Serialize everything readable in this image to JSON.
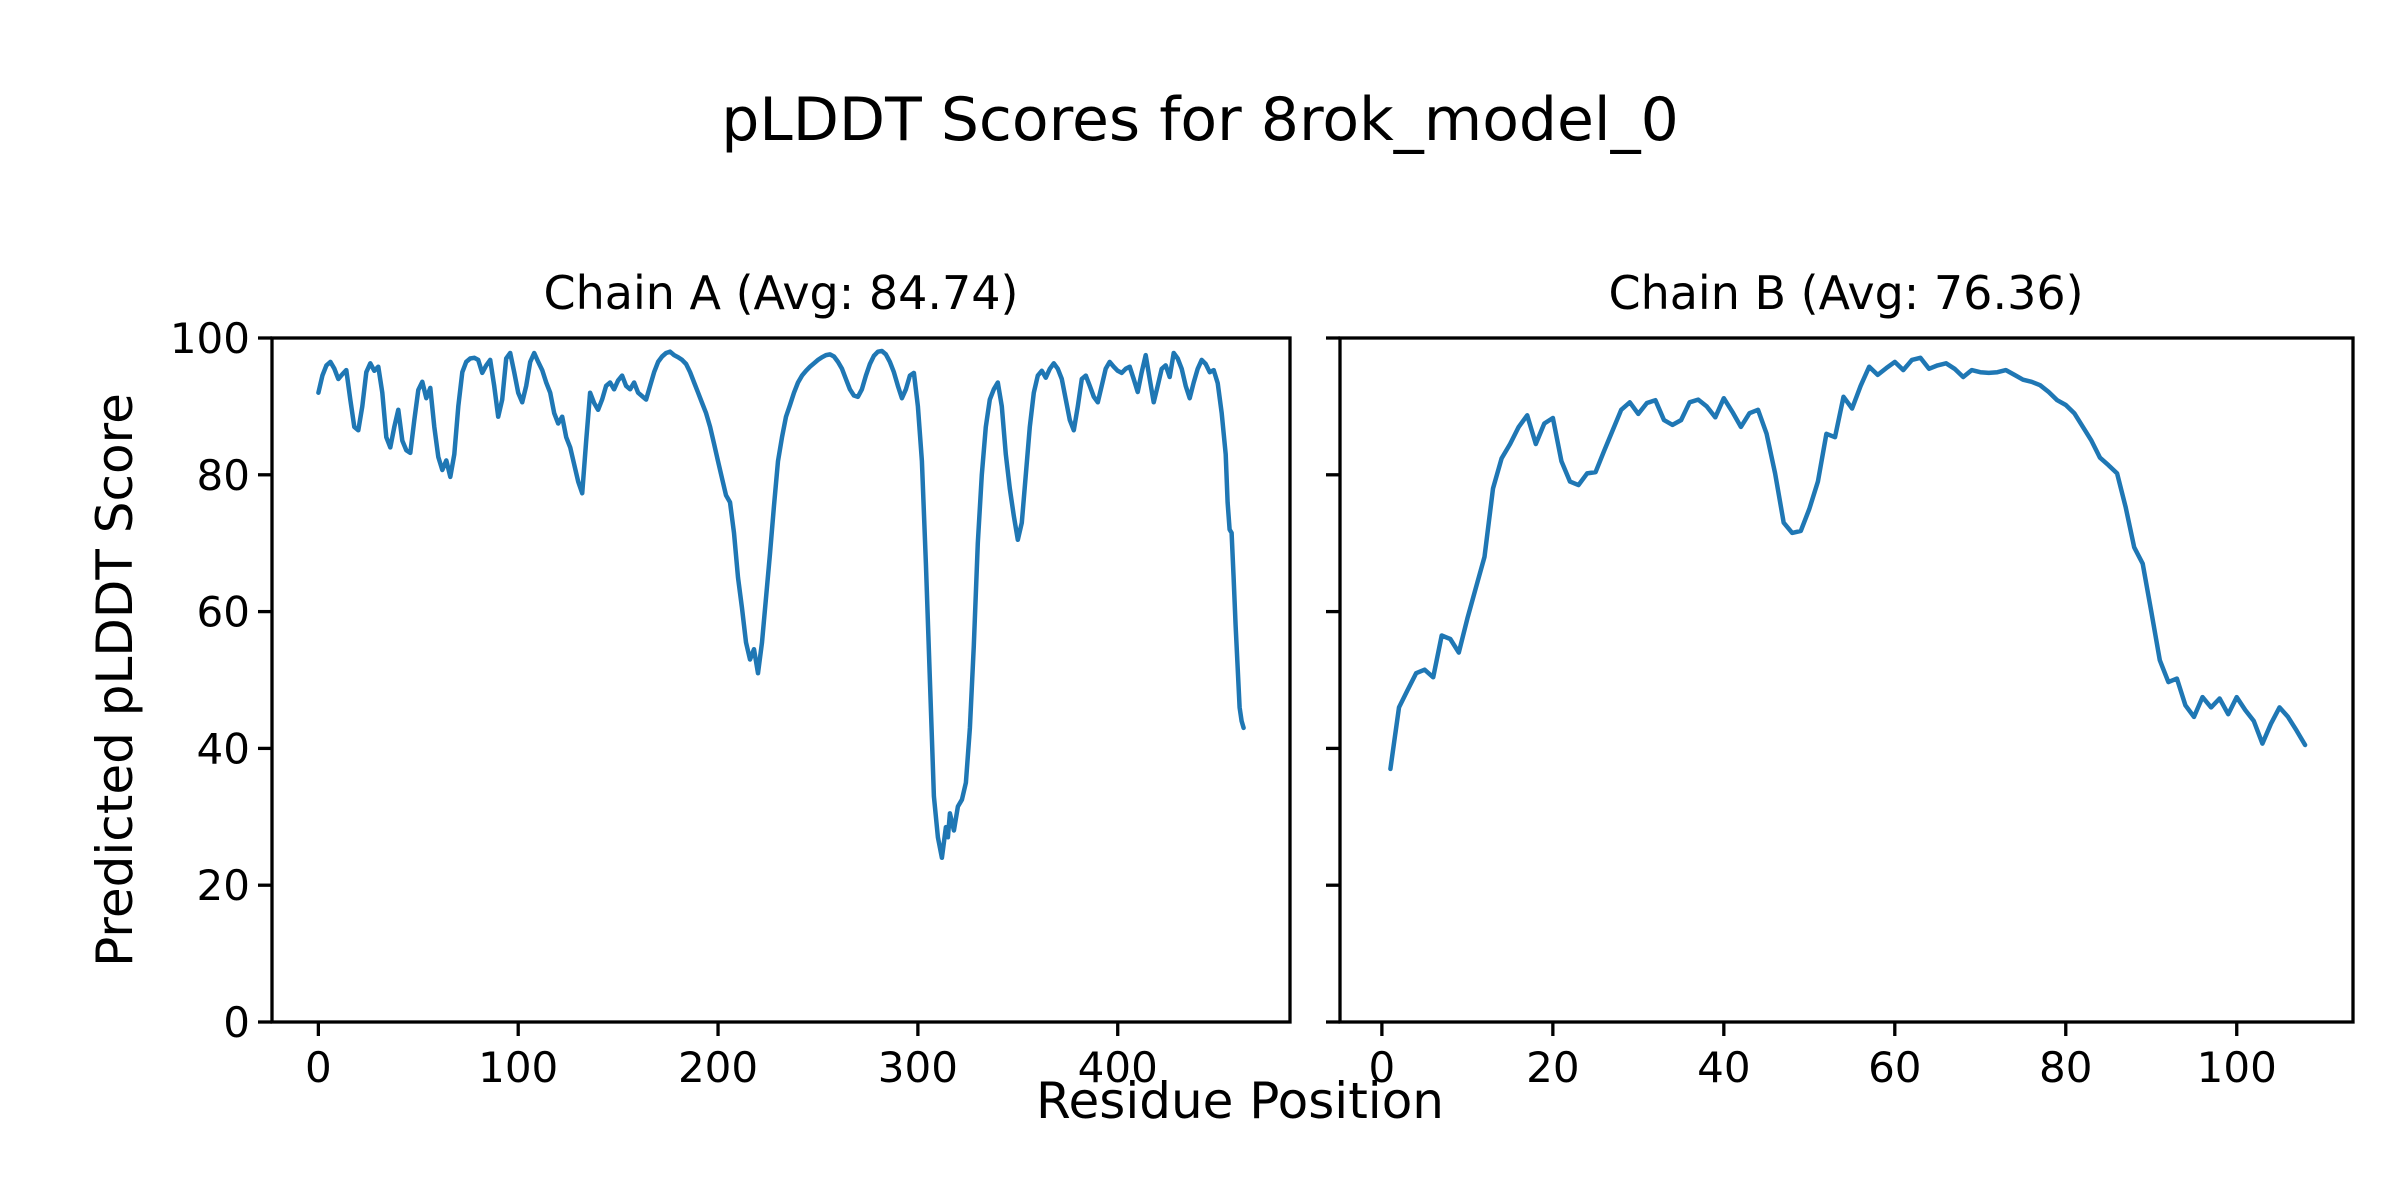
{
  "figure": {
    "title": "pLDDT Scores for 8rok_model_0",
    "background": "#ffffff",
    "text_color": "#000000"
  },
  "axes_labels": {
    "xlabel": "Residue Position",
    "ylabel": "Predicted pLDDT Score"
  },
  "chart_data": [
    {
      "type": "line",
      "chain": "A",
      "title": "Chain A (Avg: 84.74)",
      "average_plddt": 84.74,
      "line_color": "#1f77b4",
      "xlim": [
        -23.2,
        486.2
      ],
      "ylim": [
        0,
        100
      ],
      "xticks": [
        0,
        100,
        200,
        300,
        400
      ],
      "yticks": [
        0,
        20,
        40,
        60,
        80,
        100
      ],
      "show_ytick_labels": true,
      "points": [
        [
          0,
          92
        ],
        [
          2,
          94.5
        ],
        [
          4,
          96
        ],
        [
          6,
          96.5
        ],
        [
          8,
          95.5
        ],
        [
          10,
          94
        ],
        [
          12,
          94.7
        ],
        [
          14,
          95.3
        ],
        [
          16,
          91
        ],
        [
          18,
          87
        ],
        [
          20,
          86.5
        ],
        [
          22,
          90
        ],
        [
          24,
          95
        ],
        [
          26,
          96.3
        ],
        [
          28,
          95.2
        ],
        [
          30,
          95.8
        ],
        [
          32,
          92
        ],
        [
          34,
          85.5
        ],
        [
          36,
          84
        ],
        [
          38,
          87
        ],
        [
          40,
          89.5
        ],
        [
          42,
          85
        ],
        [
          44,
          83.6
        ],
        [
          46,
          83.2
        ],
        [
          48,
          88
        ],
        [
          50,
          92.4
        ],
        [
          52,
          93.6
        ],
        [
          54,
          91.2
        ],
        [
          56,
          92.7
        ],
        [
          58,
          87
        ],
        [
          60,
          82.6
        ],
        [
          62,
          80.7
        ],
        [
          64,
          82.1
        ],
        [
          66,
          79.7
        ],
        [
          68,
          83
        ],
        [
          70,
          90
        ],
        [
          72,
          95
        ],
        [
          74,
          96.5
        ],
        [
          76,
          97
        ],
        [
          78,
          97.1
        ],
        [
          80,
          96.8
        ],
        [
          82,
          94.9
        ],
        [
          84,
          96
        ],
        [
          86,
          96.8
        ],
        [
          88,
          93
        ],
        [
          90,
          88.5
        ],
        [
          92,
          91
        ],
        [
          94,
          97
        ],
        [
          96,
          97.8
        ],
        [
          98,
          95
        ],
        [
          100,
          92
        ],
        [
          102,
          90.6
        ],
        [
          104,
          93
        ],
        [
          106,
          96.5
        ],
        [
          108,
          97.8
        ],
        [
          110,
          96.5
        ],
        [
          112,
          95.3
        ],
        [
          114,
          93.5
        ],
        [
          116,
          92
        ],
        [
          118,
          89
        ],
        [
          120,
          87.5
        ],
        [
          122,
          88.5
        ],
        [
          124,
          85.5
        ],
        [
          126,
          84
        ],
        [
          128,
          81.5
        ],
        [
          130,
          79
        ],
        [
          132,
          77.3
        ],
        [
          134,
          85
        ],
        [
          136,
          92
        ],
        [
          138,
          90.5
        ],
        [
          140,
          89.5
        ],
        [
          142,
          91
        ],
        [
          144,
          93
        ],
        [
          146,
          93.5
        ],
        [
          148,
          92.5
        ],
        [
          150,
          93.8
        ],
        [
          152,
          94.5
        ],
        [
          154,
          93
        ],
        [
          156,
          92.5
        ],
        [
          158,
          93.5
        ],
        [
          160,
          92
        ],
        [
          162,
          91.5
        ],
        [
          164,
          91
        ],
        [
          166,
          93
        ],
        [
          168,
          95
        ],
        [
          170,
          96.5
        ],
        [
          172,
          97.3
        ],
        [
          174,
          97.8
        ],
        [
          176,
          98
        ],
        [
          178,
          97.5
        ],
        [
          180,
          97.2
        ],
        [
          182,
          96.8
        ],
        [
          184,
          96.2
        ],
        [
          186,
          95
        ],
        [
          188,
          93.5
        ],
        [
          190,
          92
        ],
        [
          192,
          90.5
        ],
        [
          194,
          89
        ],
        [
          196,
          87
        ],
        [
          198,
          84.5
        ],
        [
          200,
          82
        ],
        [
          202,
          79.5
        ],
        [
          204,
          77
        ],
        [
          206,
          76
        ],
        [
          208,
          71.5
        ],
        [
          210,
          65
        ],
        [
          212,
          60.5
        ],
        [
          214,
          55.5
        ],
        [
          216,
          53
        ],
        [
          218,
          54.5
        ],
        [
          220,
          51
        ],
        [
          222,
          55.5
        ],
        [
          224,
          62
        ],
        [
          226,
          68.5
        ],
        [
          228,
          75.5
        ],
        [
          230,
          82
        ],
        [
          232,
          85.5
        ],
        [
          234,
          88.5
        ],
        [
          236,
          90.2
        ],
        [
          238,
          92
        ],
        [
          240,
          93.5
        ],
        [
          242,
          94.5
        ],
        [
          244,
          95.2
        ],
        [
          246,
          95.8
        ],
        [
          248,
          96.3
        ],
        [
          250,
          96.8
        ],
        [
          252,
          97.2
        ],
        [
          254,
          97.5
        ],
        [
          256,
          97.6
        ],
        [
          258,
          97.3
        ],
        [
          260,
          96.5
        ],
        [
          262,
          95.5
        ],
        [
          264,
          94
        ],
        [
          266,
          92.5
        ],
        [
          268,
          91.6
        ],
        [
          270,
          91.4
        ],
        [
          272,
          92.5
        ],
        [
          274,
          94.5
        ],
        [
          276,
          96.2
        ],
        [
          278,
          97.4
        ],
        [
          280,
          98
        ],
        [
          282,
          98.1
        ],
        [
          284,
          97.6
        ],
        [
          286,
          96.5
        ],
        [
          288,
          95
        ],
        [
          290,
          93
        ],
        [
          292,
          91.2
        ],
        [
          294,
          92.5
        ],
        [
          296,
          94.5
        ],
        [
          298,
          94.9
        ],
        [
          300,
          90
        ],
        [
          302,
          82
        ],
        [
          304,
          67
        ],
        [
          306,
          50
        ],
        [
          308,
          33
        ],
        [
          310,
          27
        ],
        [
          312,
          24
        ],
        [
          314,
          28.5
        ],
        [
          315,
          27
        ],
        [
          316,
          30.5
        ],
        [
          318,
          28
        ],
        [
          320,
          31.5
        ],
        [
          322,
          32.5
        ],
        [
          324,
          35
        ],
        [
          326,
          43
        ],
        [
          328,
          55
        ],
        [
          330,
          70
        ],
        [
          332,
          80
        ],
        [
          334,
          87
        ],
        [
          336,
          91
        ],
        [
          338,
          92.5
        ],
        [
          340,
          93.5
        ],
        [
          342,
          90
        ],
        [
          344,
          83
        ],
        [
          346,
          78
        ],
        [
          348,
          74
        ],
        [
          350,
          70.5
        ],
        [
          352,
          73
        ],
        [
          354,
          80
        ],
        [
          356,
          87
        ],
        [
          358,
          92
        ],
        [
          360,
          94.5
        ],
        [
          362,
          95.2
        ],
        [
          364,
          94.2
        ],
        [
          366,
          95.5
        ],
        [
          368,
          96.3
        ],
        [
          370,
          95.5
        ],
        [
          372,
          94
        ],
        [
          374,
          91
        ],
        [
          376,
          88
        ],
        [
          378,
          86.5
        ],
        [
          380,
          90
        ],
        [
          382,
          94
        ],
        [
          384,
          94.5
        ],
        [
          386,
          93
        ],
        [
          388,
          91.4
        ],
        [
          390,
          90.6
        ],
        [
          392,
          93
        ],
        [
          394,
          95.5
        ],
        [
          396,
          96.5
        ],
        [
          398,
          95.8
        ],
        [
          400,
          95.2
        ],
        [
          402,
          94.9
        ],
        [
          404,
          95.5
        ],
        [
          406,
          95.8
        ],
        [
          408,
          94
        ],
        [
          410,
          92.1
        ],
        [
          412,
          95
        ],
        [
          414,
          97.5
        ],
        [
          416,
          94
        ],
        [
          418,
          90.6
        ],
        [
          420,
          93
        ],
        [
          422,
          95.5
        ],
        [
          424,
          96
        ],
        [
          426,
          94.3
        ],
        [
          428,
          97.8
        ],
        [
          430,
          97
        ],
        [
          432,
          95.5
        ],
        [
          434,
          93
        ],
        [
          436,
          91.2
        ],
        [
          438,
          93.5
        ],
        [
          440,
          95.5
        ],
        [
          442,
          96.8
        ],
        [
          444,
          96.2
        ],
        [
          446,
          95
        ],
        [
          448,
          95.3
        ],
        [
          450,
          93.4
        ],
        [
          452,
          89
        ],
        [
          454,
          83
        ],
        [
          455,
          76
        ],
        [
          456,
          72
        ],
        [
          457,
          71.5
        ],
        [
          458,
          65
        ],
        [
          459,
          58
        ],
        [
          460,
          52
        ],
        [
          461,
          46
        ],
        [
          462,
          44
        ],
        [
          463,
          43
        ]
      ]
    },
    {
      "type": "line",
      "chain": "B",
      "title": "Chain B (Avg: 76.36)",
      "average_plddt": 76.36,
      "line_color": "#1f77b4",
      "xlim": [
        -4.9,
        113.6
      ],
      "ylim": [
        0,
        100
      ],
      "xticks": [
        0,
        20,
        40,
        60,
        80,
        100
      ],
      "yticks": [
        0,
        20,
        40,
        60,
        80,
        100
      ],
      "show_ytick_labels": false,
      "points": [
        [
          1,
          37
        ],
        [
          2,
          46
        ],
        [
          3,
          48.5
        ],
        [
          4,
          51
        ],
        [
          5,
          51.5
        ],
        [
          6,
          50.4
        ],
        [
          7,
          56.5
        ],
        [
          8,
          56
        ],
        [
          9,
          54
        ],
        [
          10,
          59
        ],
        [
          11,
          63.5
        ],
        [
          12,
          68
        ],
        [
          13,
          78
        ],
        [
          14,
          82.4
        ],
        [
          15,
          84.5
        ],
        [
          16,
          87
        ],
        [
          17,
          88.7
        ],
        [
          18,
          84.5
        ],
        [
          19,
          87.5
        ],
        [
          20,
          88.3
        ],
        [
          21,
          82
        ],
        [
          22,
          79
        ],
        [
          23,
          78.5
        ],
        [
          24,
          80.2
        ],
        [
          25,
          80.4
        ],
        [
          26,
          83.5
        ],
        [
          27,
          86.5
        ],
        [
          28,
          89.5
        ],
        [
          29,
          90.6
        ],
        [
          30,
          88.9
        ],
        [
          31,
          90.5
        ],
        [
          32,
          90.9
        ],
        [
          33,
          88
        ],
        [
          34,
          87.3
        ],
        [
          35,
          88
        ],
        [
          36,
          90.6
        ],
        [
          37,
          91
        ],
        [
          38,
          90
        ],
        [
          39,
          88.4
        ],
        [
          40,
          91.2
        ],
        [
          41,
          89.2
        ],
        [
          42,
          87
        ],
        [
          43,
          89
        ],
        [
          44,
          89.5
        ],
        [
          45,
          86
        ],
        [
          46,
          80.2
        ],
        [
          47,
          73
        ],
        [
          48,
          71.5
        ],
        [
          49,
          71.8
        ],
        [
          50,
          75
        ],
        [
          51,
          79
        ],
        [
          52,
          86
        ],
        [
          53,
          85.5
        ],
        [
          54,
          91.4
        ],
        [
          55,
          89.7
        ],
        [
          56,
          93
        ],
        [
          57,
          95.8
        ],
        [
          58,
          94.6
        ],
        [
          59,
          95.6
        ],
        [
          60,
          96.5
        ],
        [
          61,
          95.3
        ],
        [
          62,
          96.8
        ],
        [
          63,
          97.1
        ],
        [
          64,
          95.5
        ],
        [
          65,
          96
        ],
        [
          66,
          96.3
        ],
        [
          67,
          95.5
        ],
        [
          68,
          94.3
        ],
        [
          69,
          95.3
        ],
        [
          70,
          95
        ],
        [
          71,
          94.9
        ],
        [
          72,
          95
        ],
        [
          73,
          95.3
        ],
        [
          74,
          94.6
        ],
        [
          75,
          93.9
        ],
        [
          76,
          93.6
        ],
        [
          77,
          93.1
        ],
        [
          78,
          92.1
        ],
        [
          79,
          90.9
        ],
        [
          80,
          90.2
        ],
        [
          81,
          89
        ],
        [
          82,
          87
        ],
        [
          83,
          85
        ],
        [
          84,
          82.5
        ],
        [
          85,
          81.4
        ],
        [
          86,
          80.2
        ],
        [
          87,
          75.3
        ],
        [
          88,
          69.4
        ],
        [
          89,
          67
        ],
        [
          90,
          60
        ],
        [
          91,
          52.9
        ],
        [
          92,
          49.7
        ],
        [
          93,
          50.2
        ],
        [
          94,
          46.3
        ],
        [
          95,
          44.6
        ],
        [
          96,
          47.5
        ],
        [
          97,
          46
        ],
        [
          98,
          47.3
        ],
        [
          99,
          45
        ],
        [
          100,
          47.5
        ],
        [
          101,
          45.6
        ],
        [
          102,
          44
        ],
        [
          103,
          40.7
        ],
        [
          104,
          43.6
        ],
        [
          105,
          46
        ],
        [
          106,
          44.6
        ],
        [
          107,
          42.6
        ],
        [
          108,
          40.5
        ]
      ]
    }
  ]
}
